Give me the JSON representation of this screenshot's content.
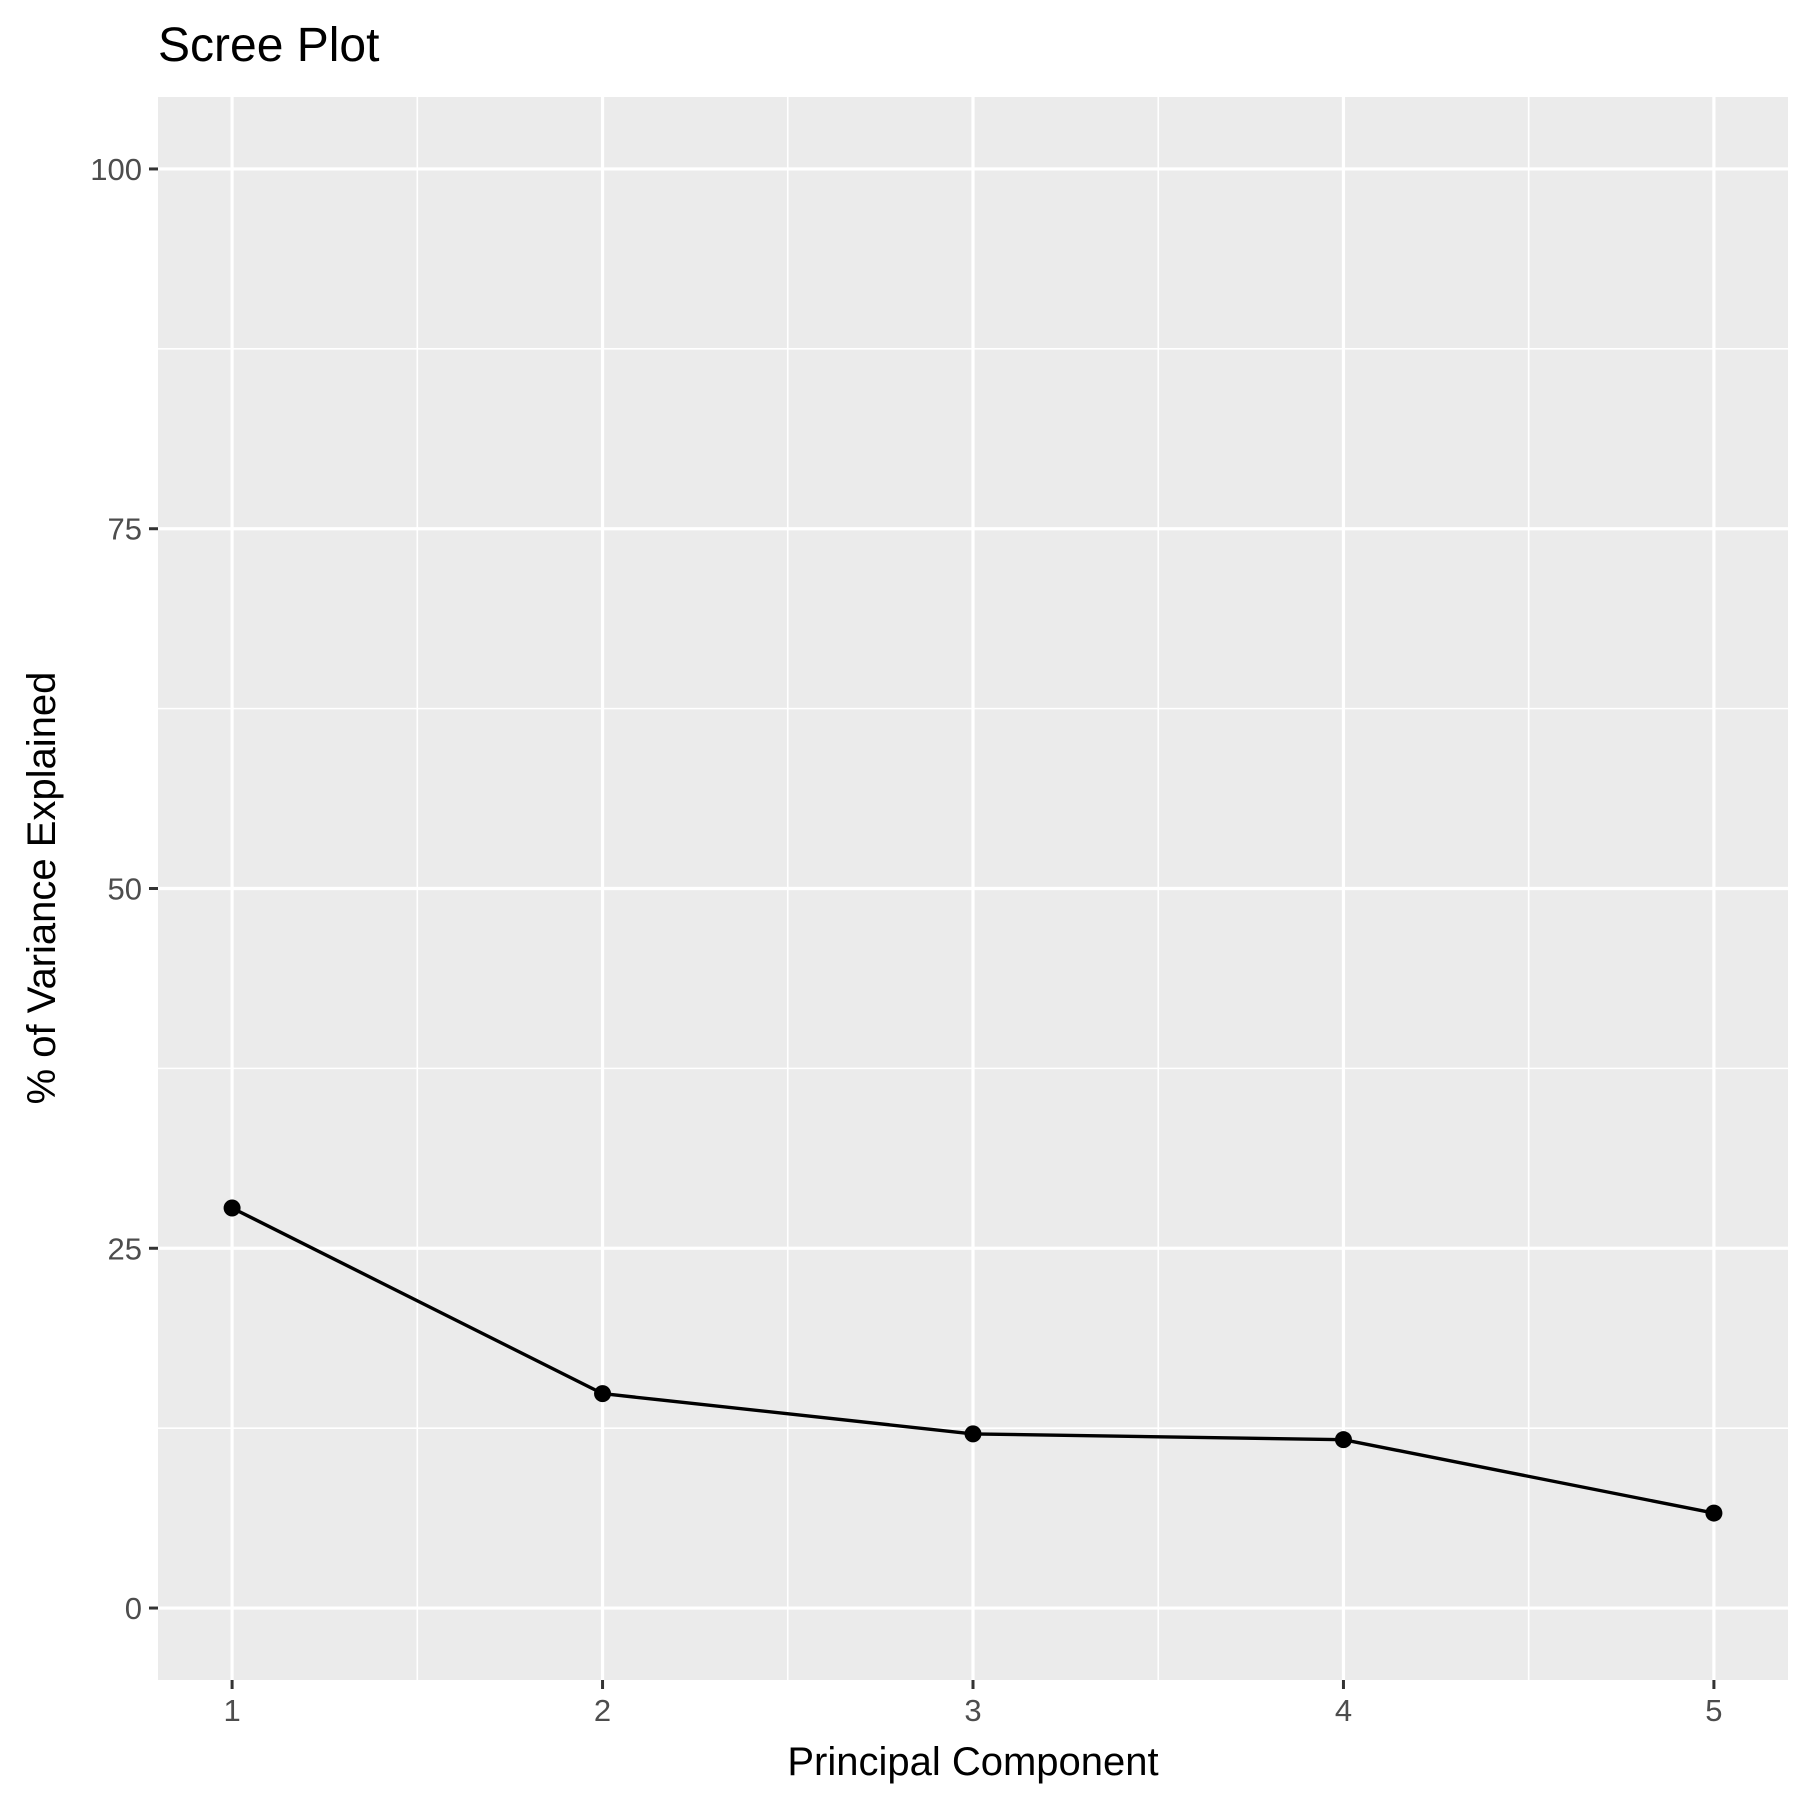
{
  "chart_data": {
    "type": "line",
    "title": "Scree Plot",
    "xlabel": "Principal Component",
    "ylabel": "% of Variance Explained",
    "x": [
      1,
      2,
      3,
      4,
      5
    ],
    "values": [
      27.8,
      14.9,
      12.1,
      11.7,
      6.6
    ],
    "xlim": [
      0.8,
      5.2
    ],
    "ylim": [
      -5,
      105
    ],
    "xticks": [
      1,
      2,
      3,
      4,
      5
    ],
    "yticks": [
      0,
      25,
      50,
      75,
      100
    ],
    "grid": true,
    "legend": "none",
    "colors": {
      "panel": "#ebebeb",
      "gridline": "#ffffff",
      "series": "#000000",
      "tick_label": "#4d4d4d",
      "axis_tick": "#333333"
    }
  }
}
